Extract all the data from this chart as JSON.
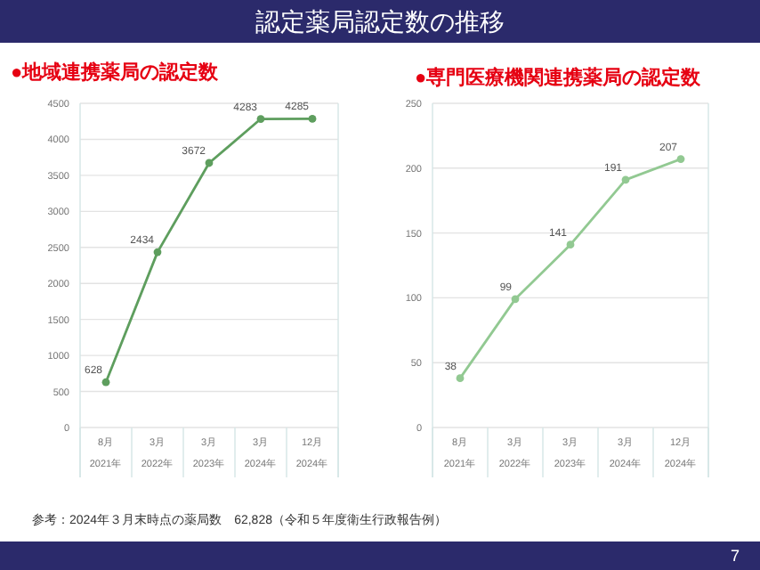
{
  "chart_data": [
    {
      "type": "other",
      "title": "認定薬局認定数の推移",
      "annotations": [
        "参考：2024年３月末時点の薬局数　62,828（令和５年度衛生行政報告例）",
        "7"
      ]
    },
    {
      "type": "line",
      "title": "●地域連携薬局の認定数",
      "categories": [
        "8月\n2021年",
        "3月\n2022年",
        "3月\n2023年",
        "3月\n2024年",
        "12月\n2024年"
      ],
      "series": [
        {
          "color": "#5e9e5e",
          "values": [
            628,
            2434,
            3672,
            4283,
            4285
          ]
        }
      ],
      "ylim": [
        0,
        4500
      ],
      "yticks": [
        0,
        500,
        1000,
        1500,
        2000,
        2500,
        3000,
        3500,
        4000,
        4500
      ],
      "grid": "y",
      "marker": "circle",
      "data_labels": true
    },
    {
      "type": "line",
      "title": "●専門医療機関連携薬局の認定数",
      "categories": [
        "8月\n2021年",
        "3月\n2022年",
        "3月\n2023年",
        "3月\n2024年",
        "12月\n2024年"
      ],
      "series": [
        {
          "color": "#92c992",
          "values": [
            38,
            99,
            141,
            191,
            207
          ]
        }
      ],
      "ylim": [
        0,
        250
      ],
      "yticks": [
        0,
        50,
        100,
        150,
        200,
        250
      ],
      "grid": "y",
      "marker": "circle",
      "data_labels": true
    }
  ]
}
